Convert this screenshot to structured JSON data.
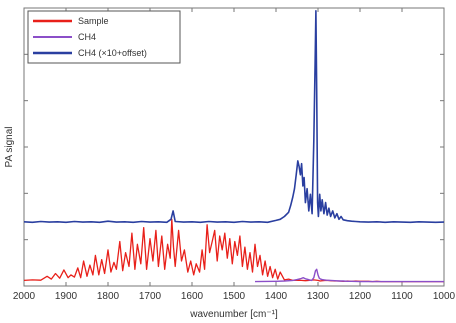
{
  "chart_data": {
    "type": "line",
    "title": "",
    "xlabel": "wavenumber [cm⁻¹]",
    "ylabel": "PA signal",
    "xlim": [
      2000,
      1000
    ],
    "x_reversed": true,
    "ylim": [
      0,
      1
    ],
    "y_tick_labels_shown": false,
    "grid": false,
    "legend_position": "top-left",
    "x_ticks": [
      2000,
      1900,
      1800,
      1700,
      1600,
      1500,
      1400,
      1300,
      1200,
      1100,
      1000
    ],
    "series": [
      {
        "name": "Sample",
        "color": "#e8201a",
        "x": [
          2000,
          1980,
          1960,
          1945,
          1935,
          1925,
          1915,
          1905,
          1895,
          1888,
          1880,
          1872,
          1865,
          1858,
          1850,
          1843,
          1836,
          1830,
          1822,
          1815,
          1808,
          1800,
          1793,
          1786,
          1780,
          1772,
          1765,
          1758,
          1750,
          1743,
          1736,
          1730,
          1722,
          1715,
          1708,
          1700,
          1693,
          1686,
          1680,
          1672,
          1665,
          1658,
          1652,
          1648,
          1644,
          1640,
          1632,
          1625,
          1618,
          1610,
          1603,
          1596,
          1590,
          1582,
          1576,
          1570,
          1564,
          1558,
          1552,
          1546,
          1540,
          1534,
          1528,
          1522,
          1516,
          1510,
          1504,
          1498,
          1492,
          1486,
          1480,
          1474,
          1468,
          1462,
          1456,
          1450,
          1444,
          1438,
          1432,
          1426,
          1420,
          1414,
          1408,
          1402,
          1396,
          1390,
          1380,
          1370,
          1360,
          1350,
          1340,
          1330,
          1320,
          1310,
          1300,
          1295,
          1290,
          1280,
          1270,
          1260,
          1250,
          1240,
          1230,
          1220,
          1210,
          1200,
          1190,
          1180,
          1170,
          1160,
          1150,
          1140,
          1130,
          1120,
          1110,
          1100,
          1090,
          1080,
          1070,
          1060,
          1050,
          1040,
          1030,
          1020,
          1010,
          1000
        ],
        "y": [
          0.02,
          0.022,
          0.021,
          0.035,
          0.025,
          0.045,
          0.028,
          0.058,
          0.03,
          0.04,
          0.032,
          0.065,
          0.03,
          0.09,
          0.035,
          0.075,
          0.04,
          0.11,
          0.04,
          0.095,
          0.045,
          0.13,
          0.05,
          0.085,
          0.06,
          0.16,
          0.055,
          0.12,
          0.07,
          0.19,
          0.06,
          0.15,
          0.08,
          0.21,
          0.06,
          0.17,
          0.09,
          0.2,
          0.07,
          0.18,
          0.06,
          0.15,
          0.1,
          0.24,
          0.14,
          0.07,
          0.2,
          0.09,
          0.13,
          0.05,
          0.09,
          0.04,
          0.08,
          0.05,
          0.13,
          0.06,
          0.22,
          0.12,
          0.16,
          0.2,
          0.09,
          0.18,
          0.13,
          0.19,
          0.1,
          0.17,
          0.08,
          0.16,
          0.11,
          0.18,
          0.07,
          0.14,
          0.06,
          0.12,
          0.05,
          0.15,
          0.07,
          0.11,
          0.04,
          0.09,
          0.035,
          0.07,
          0.03,
          0.06,
          0.025,
          0.05,
          0.022,
          0.025,
          0.02,
          0.021,
          0.02,
          0.019,
          0.02,
          0.022,
          0.02,
          0.018,
          0.019,
          0.02,
          0.019,
          0.018,
          0.018,
          0.017,
          0.018,
          0.017,
          0.018,
          0.017,
          0.017,
          0.017,
          0.016,
          0.017,
          0.016,
          0.016,
          0.016,
          0.016,
          0.016,
          0.016,
          0.016,
          0.016,
          0.016,
          0.016,
          0.016,
          0.016,
          0.016,
          0.016,
          0.016,
          0.016
        ]
      },
      {
        "name": "CH4",
        "color": "#8b4fc8",
        "x": [
          1450,
          1400,
          1380,
          1360,
          1350,
          1340,
          1335,
          1330,
          1325,
          1320,
          1315,
          1310,
          1306,
          1303,
          1300,
          1297,
          1294,
          1290,
          1285,
          1280,
          1270,
          1260,
          1250,
          1240,
          1230,
          1220,
          1200,
          1180,
          1150,
          1100,
          1050,
          1000
        ],
        "y": [
          0.016,
          0.017,
          0.018,
          0.02,
          0.023,
          0.027,
          0.03,
          0.026,
          0.024,
          0.022,
          0.02,
          0.03,
          0.055,
          0.06,
          0.04,
          0.028,
          0.025,
          0.023,
          0.022,
          0.021,
          0.02,
          0.019,
          0.018,
          0.018,
          0.017,
          0.017,
          0.016,
          0.016,
          0.016,
          0.016,
          0.016,
          0.016
        ]
      },
      {
        "name": "CH4 (×10+offset)",
        "color": "#2a3fa0",
        "x": [
          2000,
          1980,
          1960,
          1940,
          1920,
          1900,
          1880,
          1860,
          1840,
          1820,
          1800,
          1780,
          1760,
          1740,
          1720,
          1700,
          1680,
          1660,
          1650,
          1645,
          1640,
          1620,
          1600,
          1580,
          1560,
          1540,
          1520,
          1500,
          1480,
          1460,
          1440,
          1420,
          1400,
          1390,
          1380,
          1370,
          1365,
          1360,
          1356,
          1352,
          1348,
          1345,
          1342,
          1339,
          1336,
          1333,
          1330,
          1326,
          1322,
          1318,
          1314,
          1310,
          1307,
          1305,
          1303,
          1301,
          1299,
          1296,
          1293,
          1290,
          1286,
          1282,
          1278,
          1274,
          1270,
          1265,
          1260,
          1255,
          1250,
          1245,
          1240,
          1230,
          1220,
          1210,
          1200,
          1180,
          1160,
          1140,
          1120,
          1100,
          1080,
          1060,
          1040,
          1020,
          1000
        ],
        "y": [
          0.231,
          0.229,
          0.232,
          0.23,
          0.231,
          0.229,
          0.232,
          0.23,
          0.231,
          0.229,
          0.233,
          0.23,
          0.231,
          0.229,
          0.232,
          0.23,
          0.231,
          0.229,
          0.24,
          0.27,
          0.232,
          0.23,
          0.231,
          0.229,
          0.232,
          0.23,
          0.231,
          0.229,
          0.232,
          0.23,
          0.231,
          0.229,
          0.236,
          0.24,
          0.25,
          0.265,
          0.29,
          0.32,
          0.35,
          0.4,
          0.45,
          0.43,
          0.4,
          0.44,
          0.36,
          0.39,
          0.3,
          0.35,
          0.27,
          0.33,
          0.26,
          0.52,
          0.8,
          0.99,
          0.7,
          0.3,
          0.25,
          0.33,
          0.27,
          0.31,
          0.26,
          0.3,
          0.255,
          0.28,
          0.25,
          0.27,
          0.245,
          0.26,
          0.24,
          0.25,
          0.238,
          0.235,
          0.233,
          0.232,
          0.231,
          0.23,
          0.231,
          0.229,
          0.231,
          0.23,
          0.229,
          0.231,
          0.23,
          0.229,
          0.23
        ]
      }
    ]
  }
}
